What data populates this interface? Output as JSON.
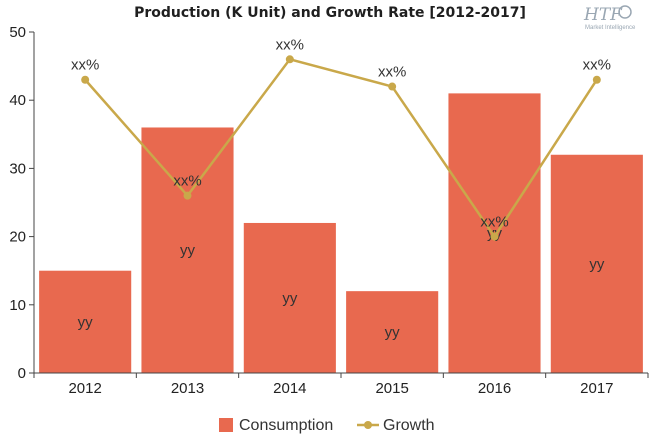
{
  "chart_data": {
    "type": "bar",
    "title": "Production (K Unit) and Growth Rate [2012-2017]",
    "categories": [
      "2012",
      "2013",
      "2014",
      "2015",
      "2016",
      "2017"
    ],
    "ylim": [
      0,
      50
    ],
    "yticks": [
      "0",
      "10",
      "20",
      "30",
      "40",
      "50"
    ],
    "grid": false,
    "legend_position": "bottom-center",
    "series": [
      {
        "name": "Consumption",
        "kind": "bar",
        "color": "#e8694f",
        "values": [
          15,
          36,
          22,
          12,
          41,
          32
        ],
        "labels": [
          "yy",
          "yy",
          "yy",
          "yy",
          "yy",
          "yy"
        ]
      },
      {
        "name": "Growth",
        "kind": "line",
        "color": "#c9a84a",
        "values": [
          43,
          26,
          46,
          42,
          20,
          43
        ],
        "labels": [
          "xx%",
          "xx%",
          "xx%",
          "xx%",
          "xx%",
          "xx%"
        ]
      }
    ]
  },
  "logo": {
    "text": "HTF",
    "subtext": "Market Intelligence",
    "color": "#9aa7b3"
  }
}
